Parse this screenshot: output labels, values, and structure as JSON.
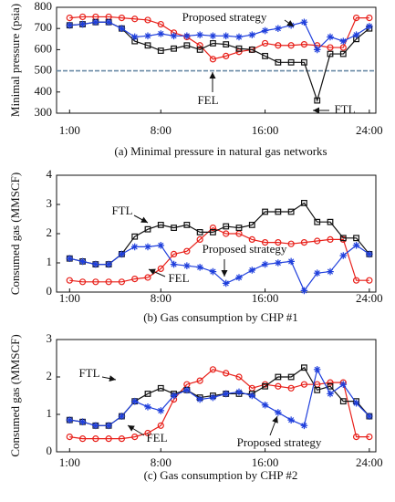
{
  "chart_data": [
    {
      "type": "line",
      "caption": "(a) Minimal pressure in natural gas networks",
      "ylabel": "Minimal pressure (psia)",
      "x": [
        1,
        2,
        3,
        4,
        5,
        6,
        7,
        8,
        9,
        10,
        11,
        12,
        13,
        14,
        15,
        16,
        17,
        18,
        19,
        20,
        21,
        22,
        23,
        24
      ],
      "xlim": [
        0,
        24.5
      ],
      "xticks": [
        {
          "value": 1,
          "label": "1:00"
        },
        {
          "value": 8,
          "label": "8:00"
        },
        {
          "value": 16,
          "label": "16:00"
        },
        {
          "value": 24,
          "label": "24:00"
        }
      ],
      "ylim": [
        300,
        800
      ],
      "yticks": [
        300,
        400,
        500,
        600,
        700,
        800
      ],
      "reference_line": {
        "value": 500,
        "color": "#6a8aa6"
      },
      "series": [
        {
          "name": "FEL",
          "color": "#e8201a",
          "marker": "circle",
          "values": [
            750,
            755,
            755,
            755,
            750,
            745,
            740,
            720,
            680,
            660,
            620,
            555,
            570,
            590,
            600,
            630,
            620,
            620,
            625,
            620,
            610,
            610,
            750,
            750
          ]
        },
        {
          "name": "FTL",
          "color": "#111111",
          "marker": "square",
          "values": [
            715,
            720,
            730,
            730,
            700,
            640,
            620,
            595,
            605,
            620,
            600,
            630,
            625,
            605,
            600,
            570,
            540,
            540,
            540,
            360,
            580,
            580,
            650,
            700
          ]
        },
        {
          "name": "Proposed strategy",
          "color": "#1f3fdc",
          "marker": "star",
          "values": [
            715,
            720,
            730,
            730,
            700,
            660,
            665,
            675,
            665,
            665,
            670,
            665,
            665,
            660,
            670,
            690,
            700,
            715,
            730,
            600,
            660,
            640,
            670,
            710
          ]
        }
      ],
      "annotations": [
        "Proposed strategy",
        "FEL",
        "FTL"
      ]
    },
    {
      "type": "line",
      "caption": "(b) Gas consumption by CHP #1",
      "ylabel": "Consumed gas (MMSCF)",
      "x": [
        1,
        2,
        3,
        4,
        5,
        6,
        7,
        8,
        9,
        10,
        11,
        12,
        13,
        14,
        15,
        16,
        17,
        18,
        19,
        20,
        21,
        22,
        23,
        24
      ],
      "xlim": [
        0,
        24.5
      ],
      "xticks": [
        {
          "value": 1,
          "label": "1:00"
        },
        {
          "value": 8,
          "label": "8:00"
        },
        {
          "value": 16,
          "label": "16:00"
        },
        {
          "value": 24,
          "label": "24:00"
        }
      ],
      "ylim": [
        0,
        4
      ],
      "yticks": [
        0,
        1,
        2,
        3,
        4
      ],
      "series": [
        {
          "name": "FEL",
          "color": "#e8201a",
          "marker": "circle",
          "values": [
            0.4,
            0.35,
            0.35,
            0.35,
            0.35,
            0.45,
            0.5,
            0.8,
            1.3,
            1.4,
            1.8,
            2.2,
            2.0,
            2.0,
            1.8,
            1.7,
            1.7,
            1.65,
            1.7,
            1.75,
            1.8,
            1.8,
            0.4,
            0.4
          ]
        },
        {
          "name": "FTL",
          "color": "#111111",
          "marker": "square",
          "values": [
            1.15,
            1.05,
            0.95,
            0.95,
            1.3,
            1.9,
            2.15,
            2.3,
            2.2,
            2.3,
            2.05,
            2.05,
            2.25,
            2.2,
            2.3,
            2.75,
            2.75,
            2.75,
            3.05,
            2.4,
            2.4,
            1.85,
            1.85,
            1.3
          ]
        },
        {
          "name": "Proposed strategy",
          "color": "#1f3fdc",
          "marker": "star",
          "values": [
            1.15,
            1.05,
            0.95,
            0.95,
            1.3,
            1.55,
            1.55,
            1.6,
            0.95,
            0.9,
            0.85,
            0.7,
            0.3,
            0.5,
            0.75,
            0.95,
            1.0,
            1.05,
            0.05,
            0.65,
            0.7,
            1.25,
            1.6,
            1.3
          ]
        }
      ],
      "annotations": [
        "FTL",
        "Proposed strategy",
        "FEL"
      ]
    },
    {
      "type": "line",
      "caption": "(c) Gas consumption by CHP #2",
      "ylabel": "Consumed gas (MMSCF)",
      "x": [
        1,
        2,
        3,
        4,
        5,
        6,
        7,
        8,
        9,
        10,
        11,
        12,
        13,
        14,
        15,
        16,
        17,
        18,
        19,
        20,
        21,
        22,
        23,
        24
      ],
      "xlim": [
        0,
        24.5
      ],
      "xticks": [
        {
          "value": 1,
          "label": "1:00"
        },
        {
          "value": 8,
          "label": "8:00"
        },
        {
          "value": 16,
          "label": "16:00"
        },
        {
          "value": 24,
          "label": "24:00"
        }
      ],
      "ylim": [
        0,
        3
      ],
      "yticks": [
        0,
        1,
        2,
        3
      ],
      "series": [
        {
          "name": "FEL",
          "color": "#e8201a",
          "marker": "circle",
          "values": [
            0.4,
            0.35,
            0.35,
            0.35,
            0.35,
            0.4,
            0.5,
            0.7,
            1.4,
            1.8,
            1.9,
            2.2,
            2.1,
            2.0,
            1.7,
            1.8,
            1.75,
            1.7,
            1.8,
            1.8,
            1.85,
            1.85,
            0.4,
            0.4
          ]
        },
        {
          "name": "FTL",
          "color": "#111111",
          "marker": "square",
          "values": [
            0.85,
            0.8,
            0.7,
            0.7,
            0.95,
            1.35,
            1.55,
            1.7,
            1.55,
            1.65,
            1.45,
            1.5,
            1.55,
            1.55,
            1.55,
            1.75,
            2.0,
            2.0,
            2.25,
            1.65,
            1.75,
            1.35,
            1.35,
            0.95
          ]
        },
        {
          "name": "Proposed strategy",
          "color": "#1f3fdc",
          "marker": "star",
          "values": [
            0.85,
            0.8,
            0.7,
            0.7,
            0.95,
            1.35,
            1.2,
            1.1,
            1.5,
            1.65,
            1.4,
            1.45,
            1.55,
            1.6,
            1.5,
            1.25,
            1.05,
            0.85,
            0.7,
            2.2,
            1.55,
            1.8,
            1.3,
            0.95
          ]
        }
      ],
      "annotations": [
        "FTL",
        "FEL",
        "Proposed strategy"
      ]
    }
  ]
}
